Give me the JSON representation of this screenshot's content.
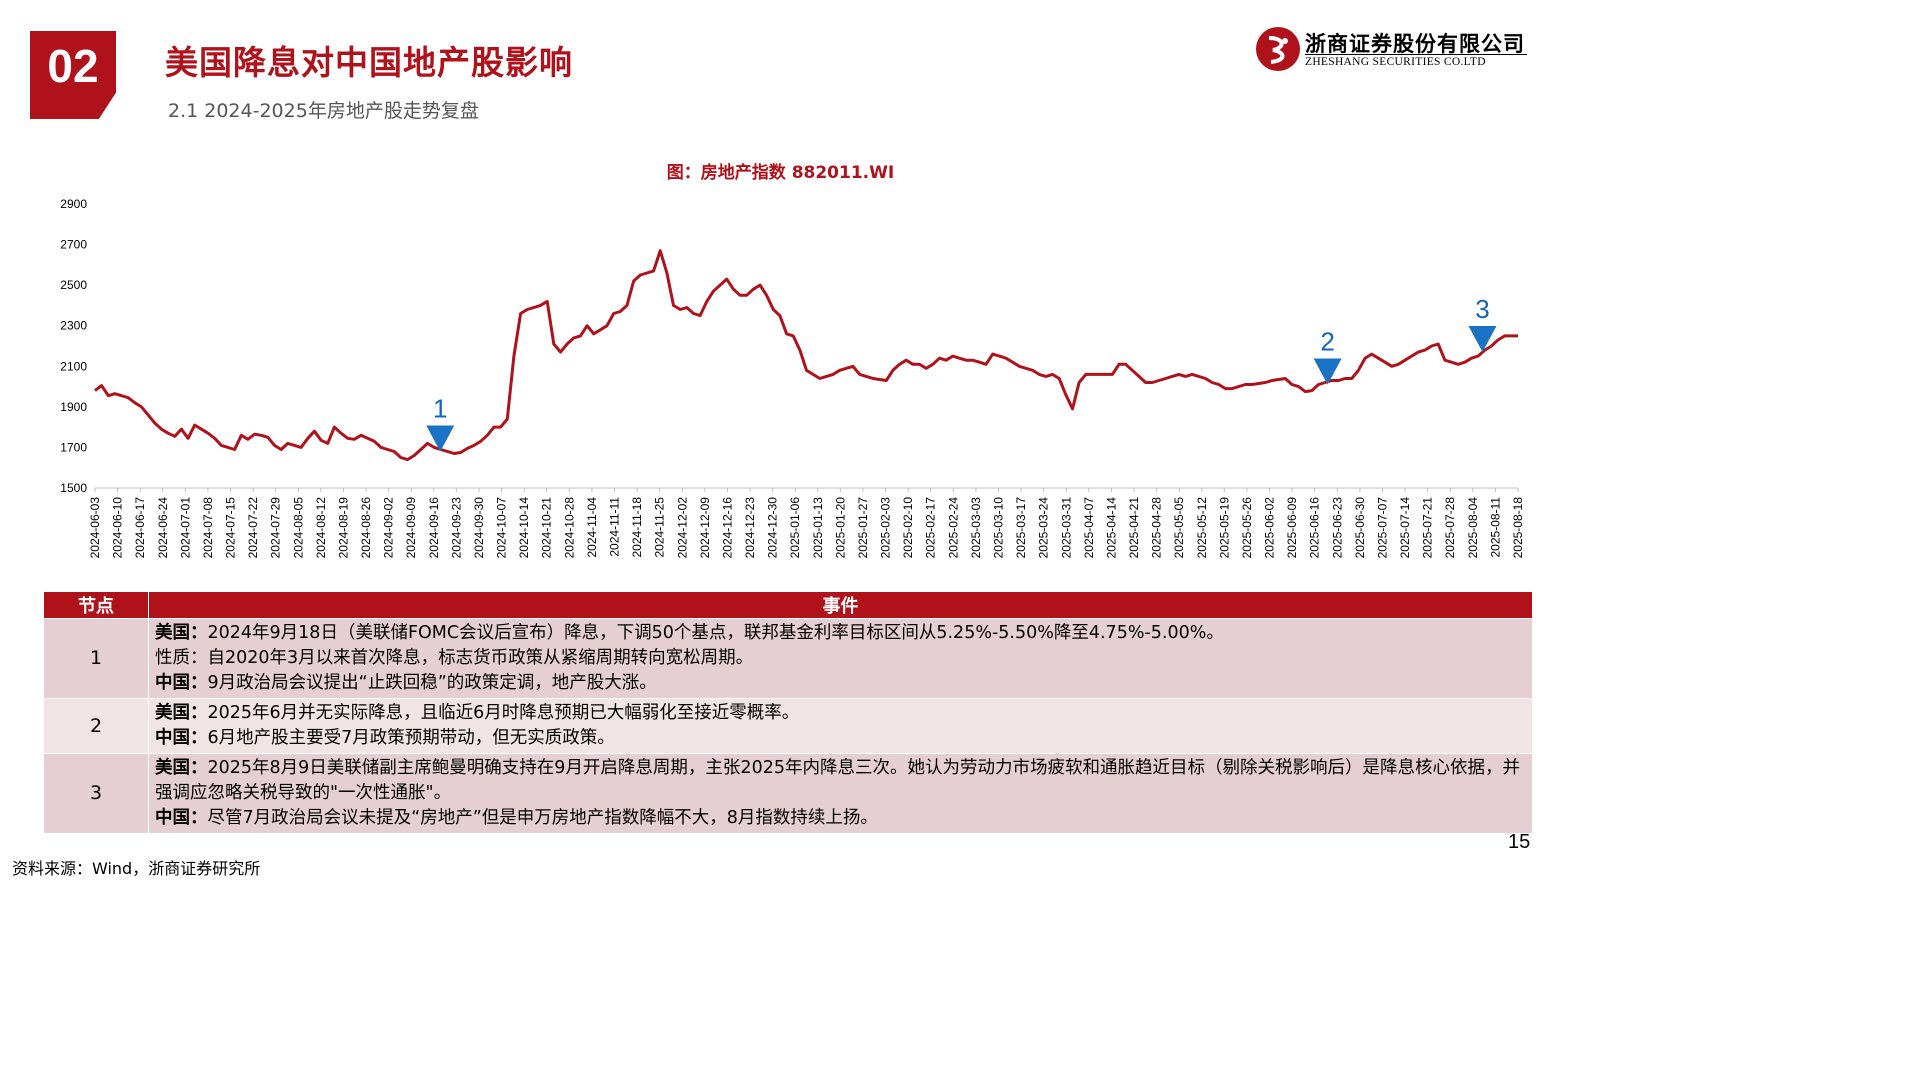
{
  "header": {
    "section_number": "02",
    "title": "美国降息对中国地产股影响",
    "subtitle": "2.1 2024-2025年房地产股走势复盘"
  },
  "logo": {
    "name_cn": "浙商证券股份有限公司",
    "name_en": "ZHESHANG SECURITIES CO.LTD"
  },
  "colors": {
    "accent": "#b0121b",
    "line": "#b0121b",
    "marker": "#1a73c5",
    "marker_text": "#1565b8"
  },
  "chart_data": {
    "type": "line",
    "title": "图：房地产指数 882011.WI",
    "xlabel": "",
    "ylabel": "",
    "ylim": [
      1500,
      2900
    ],
    "yticks": [
      1500,
      1700,
      1900,
      2100,
      2300,
      2500,
      2700,
      2900
    ],
    "grid": false,
    "legend": "none",
    "x_tick_labels": [
      "2024-06-03",
      "2024-06-10",
      "2024-06-17",
      "2024-06-24",
      "2024-07-01",
      "2024-07-08",
      "2024-07-15",
      "2024-07-22",
      "2024-07-29",
      "2024-08-05",
      "2024-08-12",
      "2024-08-19",
      "2024-08-26",
      "2024-09-02",
      "2024-09-09",
      "2024-09-16",
      "2024-09-23",
      "2024-09-30",
      "2024-10-07",
      "2024-10-14",
      "2024-10-21",
      "2024-10-28",
      "2024-11-04",
      "2024-11-11",
      "2024-11-18",
      "2024-11-25",
      "2024-12-02",
      "2024-12-09",
      "2024-12-16",
      "2024-12-23",
      "2024-12-30",
      "2025-01-06",
      "2025-01-13",
      "2025-01-20",
      "2025-01-27",
      "2025-02-03",
      "2025-02-10",
      "2025-02-17",
      "2025-02-24",
      "2025-03-03",
      "2025-03-10",
      "2025-03-17",
      "2025-03-24",
      "2025-03-31",
      "2025-04-07",
      "2025-04-14",
      "2025-04-21",
      "2025-04-28",
      "2025-05-05",
      "2025-05-12",
      "2025-05-19",
      "2025-05-26",
      "2025-06-02",
      "2025-06-09",
      "2025-06-16",
      "2025-06-23",
      "2025-06-30",
      "2025-07-07",
      "2025-07-14",
      "2025-07-21",
      "2025-07-28",
      "2025-08-04",
      "2025-08-11",
      "2025-08-18"
    ],
    "series": [
      {
        "values": [
          1980,
          2005,
          1955,
          1965,
          1955,
          1945,
          1920,
          1900,
          1860,
          1820,
          1790,
          1770,
          1755,
          1790,
          1745,
          1810,
          1790,
          1770,
          1745,
          1710,
          1700,
          1690,
          1760,
          1740,
          1765,
          1760,
          1750,
          1710,
          1690,
          1720,
          1710,
          1700,
          1745,
          1780,
          1735,
          1720,
          1800,
          1770,
          1745,
          1740,
          1760,
          1745,
          1730,
          1700,
          1690,
          1680,
          1650,
          1640,
          1660,
          1690,
          1720,
          1700,
          1690,
          1680,
          1670,
          1675,
          1695,
          1710,
          1730,
          1760,
          1800,
          1800,
          1840,
          2150,
          2360,
          2380,
          2390,
          2400,
          2420,
          2210,
          2170,
          2210,
          2240,
          2250,
          2300,
          2260,
          2280,
          2300,
          2360,
          2370,
          2400,
          2520,
          2550,
          2560,
          2570,
          2670,
          2560,
          2400,
          2380,
          2390,
          2360,
          2350,
          2420,
          2470,
          2500,
          2530,
          2480,
          2450,
          2450,
          2480,
          2500,
          2450,
          2380,
          2350,
          2260,
          2250,
          2180,
          2080,
          2060,
          2040,
          2050,
          2060,
          2080,
          2090,
          2100,
          2060,
          2050,
          2040,
          2035,
          2030,
          2080,
          2110,
          2130,
          2110,
          2110,
          2090,
          2110,
          2140,
          2130,
          2150,
          2140,
          2130,
          2130,
          2120,
          2110,
          2160,
          2150,
          2140,
          2120,
          2100,
          2090,
          2080,
          2060,
          2050,
          2060,
          2040,
          1960,
          1890,
          2020,
          2060,
          2060,
          2060,
          2060,
          2060,
          2110,
          2110,
          2080,
          2050,
          2020,
          2020,
          2030,
          2040,
          2050,
          2060,
          2050,
          2060,
          2050,
          2040,
          2020,
          2010,
          1990,
          1990,
          2000,
          2010,
          2010,
          2015,
          2020,
          2030,
          2035,
          2040,
          2010,
          2000,
          1975,
          1980,
          2010,
          2020,
          2030,
          2030,
          2040,
          2040,
          2080,
          2140,
          2160,
          2140,
          2120,
          2100,
          2110,
          2130,
          2150,
          2170,
          2180,
          2200,
          2210,
          2130,
          2120,
          2110,
          2120,
          2140,
          2150,
          2180,
          2200,
          2230,
          2250,
          2250,
          2250
        ]
      }
    ],
    "annotations": [
      {
        "label": "1",
        "x": "2024-09-18"
      },
      {
        "label": "2",
        "x": "2025-06-20"
      },
      {
        "label": "3",
        "x": "2025-08-07"
      }
    ]
  },
  "events_table": {
    "headers": [
      "节点",
      "事件"
    ],
    "rows": [
      {
        "node": "1",
        "lines": [
          {
            "label": "美国：",
            "text": "2024年9月18日（美联储FOMC会议后宣布）降息，下调50个基点，联邦基金利率目标区间从5.25%-5.50%降至4.75%-5.00%。"
          },
          {
            "label": "",
            "text": "性质：自2020年3月以来首次降息，标志货币政策从紧缩周期转向宽松周期。"
          },
          {
            "label": "中国：",
            "text": "9月政治局会议提出“止跌回稳”的政策定调，地产股大涨。"
          }
        ]
      },
      {
        "node": "2",
        "lines": [
          {
            "label": "美国：",
            "text": "2025年6月并无实际降息，且临近6月时降息预期已大幅弱化至接近零概率。"
          },
          {
            "label": "中国：",
            "text": "6月地产股主要受7月政策预期带动，但无实质政策。"
          }
        ]
      },
      {
        "node": "3",
        "lines": [
          {
            "label": "美国：",
            "text": "2025年8月9日美联储副主席鲍曼明确支持在9月开启降息周期，主张2025年内降息三次。她认为劳动力市场疲软和通胀趋近目标（剔除关税影响后）是降息核心依据，并强调应忽略关税导致的\"一次性通胀\"。"
          },
          {
            "label": "中国：",
            "text": "尽管7月政治局会议未提及“房地产”但是申万房地产指数降幅不大，8月指数持续上扬。"
          }
        ]
      }
    ]
  },
  "footer": {
    "source": "资料来源：Wind，浙商证券研究所",
    "page_number": "15"
  }
}
